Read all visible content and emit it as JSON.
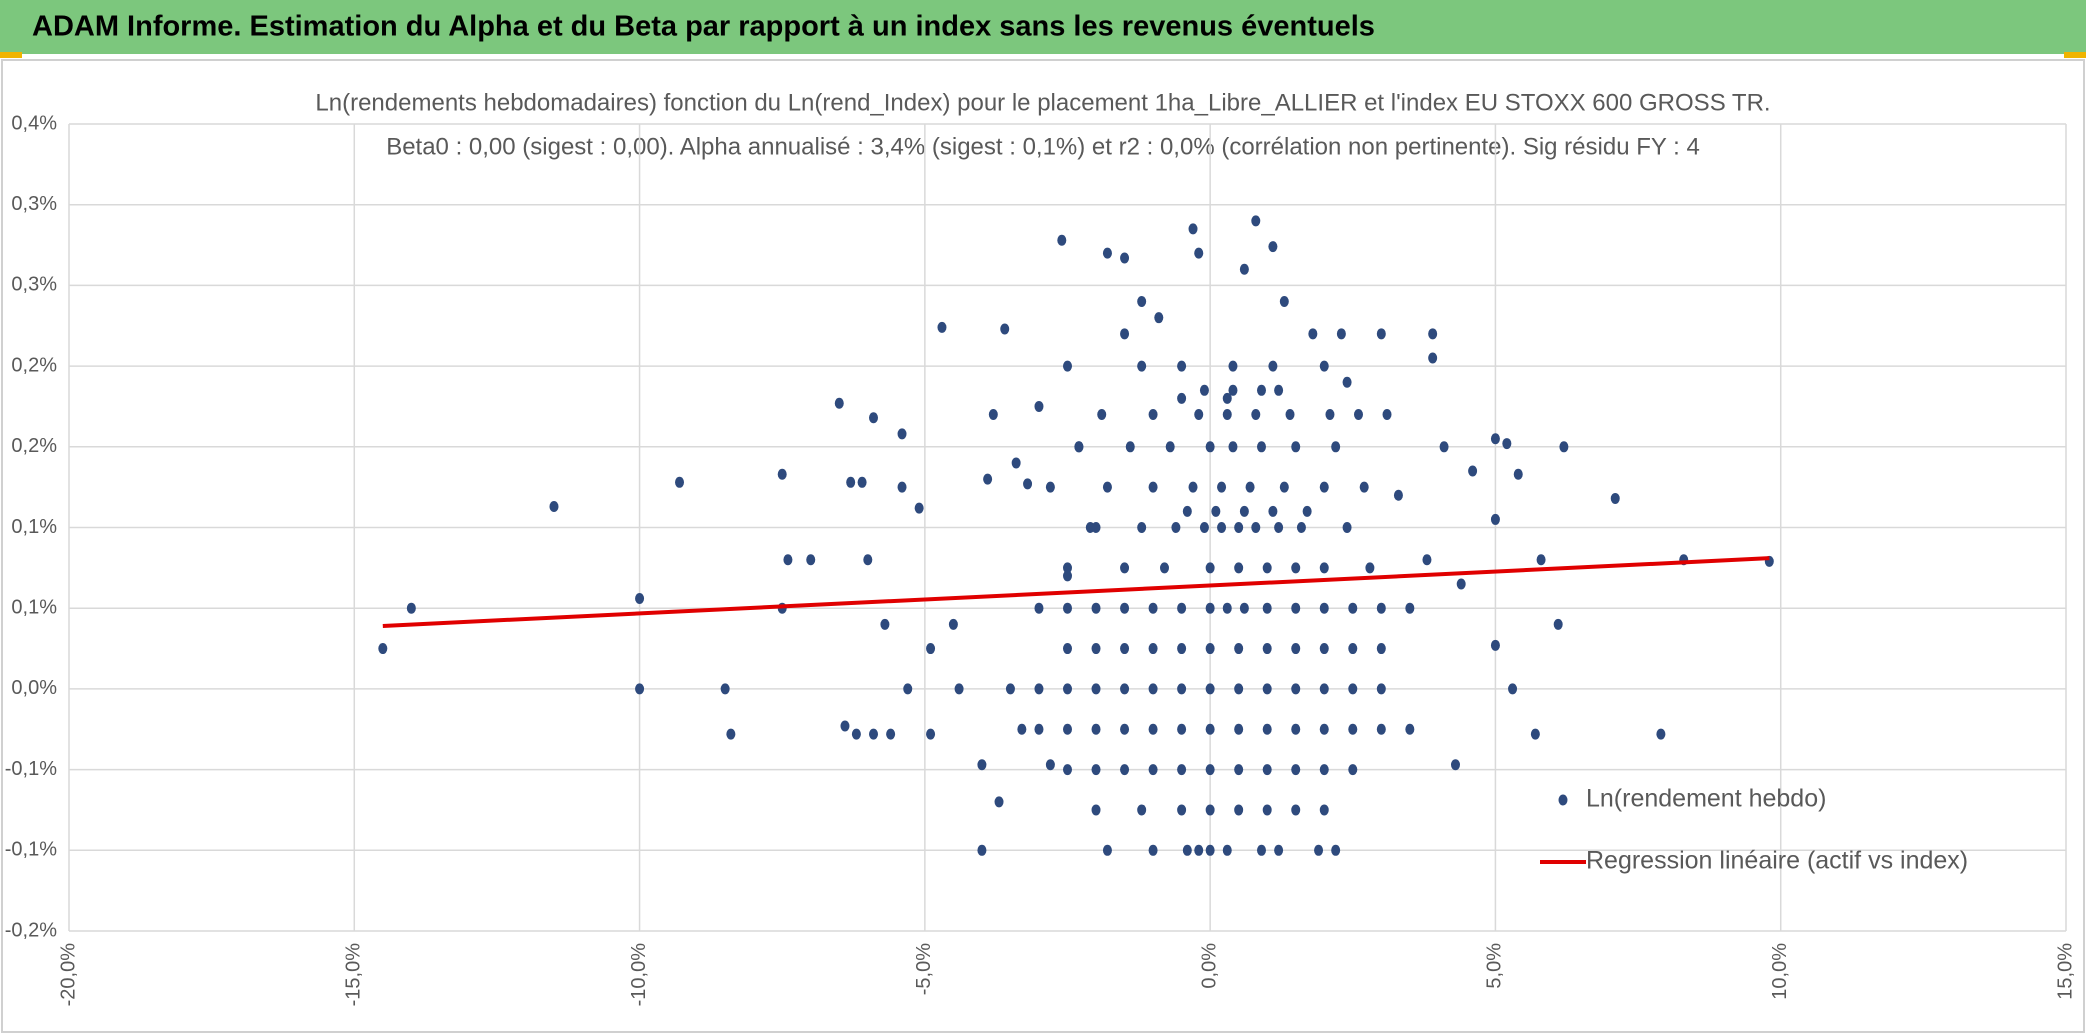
{
  "header": {
    "title": "ADAM Informe. Estimation du Alpha et du Beta par rapport à un index sans les revenus éventuels"
  },
  "chart_data": {
    "type": "scatter",
    "title": "Ln(rendements hebdomadaires) fonction du Ln(rend_Index) pour le placement 1ha_Libre_ALLIER et l'index EU STOXX 600 GROSS TR.",
    "subtitle": "Beta0 : 0,00 (sigest : 0,00). Alpha annualisé : 3,4% (sigest : 0,1%) et r2 : 0,0% (corrélation non pertinente). Sig résidu FY : 4",
    "xlim": [
      -20,
      15
    ],
    "xticks": [
      {
        "value": -20,
        "label": "-20,0%"
      },
      {
        "value": -15,
        "label": "-15,0%"
      },
      {
        "value": -10,
        "label": "-10,0%"
      },
      {
        "value": -5,
        "label": "-5,0%"
      },
      {
        "value": 0,
        "label": "0,0%"
      },
      {
        "value": 5,
        "label": "5,0%"
      },
      {
        "value": 10,
        "label": "10,0%"
      },
      {
        "value": 15,
        "label": "15,0%"
      }
    ],
    "ylim": [
      -0.15,
      0.35
    ],
    "yticks": [
      {
        "value": -0.15,
        "label": "-0,2%"
      },
      {
        "value": -0.1,
        "label": "-0,1%"
      },
      {
        "value": -0.05,
        "label": "-0,1%"
      },
      {
        "value": 0,
        "label": "0,0%"
      },
      {
        "value": 0.05,
        "label": "0,1%"
      },
      {
        "value": 0.1,
        "label": "0,1%"
      },
      {
        "value": 0.15,
        "label": "0,2%"
      },
      {
        "value": 0.2,
        "label": "0,2%"
      },
      {
        "value": 0.25,
        "label": "0,3%"
      },
      {
        "value": 0.3,
        "label": "0,3%"
      },
      {
        "value": 0.35,
        "label": "0,4%"
      }
    ],
    "grid": true,
    "legend": "right",
    "series": [
      {
        "name": "Ln(rendement hebdo)",
        "color": "#2e4a7d",
        "kind": "markers",
        "x": [
          -14.5,
          -14,
          -11.5,
          -10,
          -10,
          -9.3,
          -8.5,
          -8.4,
          -7.5,
          -7.4,
          -7.5,
          -7,
          -6.5,
          -6.4,
          -6.2,
          -6.3,
          -6.1,
          -6,
          -5.9,
          -5.9,
          -5.7,
          -5.6,
          -5.4,
          -5.4,
          -5.3,
          -5.1,
          -4.9,
          -4.7,
          -4.9,
          -4.5,
          -4.4,
          -4,
          -4,
          -3.9,
          -3.8,
          -3.7,
          -3.6,
          -3.4,
          -3.3,
          -3.2,
          -3,
          -2.8,
          -2.6,
          -2.5,
          -2.3,
          -2.1,
          -1.8,
          -1.5,
          -1.5,
          -1.2,
          -0.9,
          -0.5,
          -0.3,
          -0.2,
          0.3,
          0.6,
          0.8,
          1.1,
          1.3,
          1.8,
          2.3,
          2.4,
          3,
          3.1,
          3.3,
          3.9,
          3.9,
          3.8,
          4.1,
          4.3,
          4.4,
          4.6,
          5,
          5,
          5,
          5.2,
          5.3,
          5.4,
          5.7,
          5.8,
          6.1,
          6.2,
          7.1,
          7.9,
          8.3,
          9.8,
          -3.5,
          -3,
          -2.5,
          -2,
          -1.5,
          -1,
          -0.5,
          0,
          0.5,
          1,
          1.5,
          2,
          2.5,
          3,
          -3,
          -2.5,
          -2,
          -1.5,
          -1,
          -0.5,
          0,
          0.5,
          1,
          1.5,
          2,
          2.5,
          3,
          3.5,
          -2.5,
          -2,
          -1.5,
          -1,
          -0.5,
          0,
          0.5,
          1,
          1.5,
          2,
          2.5,
          3,
          -3,
          -2.5,
          -2,
          -1.5,
          -1,
          -0.5,
          0,
          0.3,
          0.6,
          1,
          1.5,
          2,
          2.5,
          3,
          3.5,
          -2.5,
          -2,
          -1.5,
          -1,
          -0.5,
          0,
          0.5,
          1,
          1.5,
          2,
          2.5,
          -2,
          -1.2,
          -0.5,
          0,
          0.5,
          1,
          1.5,
          2,
          -1.8,
          -1,
          -0.4,
          -0.2,
          0,
          0.3,
          0.9,
          1.2,
          1.9,
          2.2,
          -2.5,
          -1.5,
          -0.8,
          0,
          0.5,
          1,
          1.5,
          2,
          2.8,
          -2,
          -1.2,
          -0.6,
          -0.1,
          0.2,
          0.5,
          0.8,
          1.2,
          1.6,
          2.4,
          -0.4,
          0.1,
          0.6,
          1.1,
          1.7,
          -2.8,
          -1.8,
          -1,
          -0.3,
          0.2,
          0.7,
          1.3,
          2,
          2.7,
          -2.3,
          -1.4,
          -0.7,
          0,
          0.4,
          0.9,
          1.5,
          2.2,
          -1.9,
          -1,
          -0.2,
          0.3,
          0.8,
          1.4,
          2.1,
          2.6,
          -0.1,
          0.4,
          0.9,
          1.2,
          -2.5,
          -1.2,
          -0.5,
          0.4,
          1.1,
          2
        ],
        "values": [
          0.025,
          0.05,
          0.113,
          0.056,
          0,
          0.128,
          0,
          -0.028,
          0.133,
          0.08,
          0.05,
          0.08,
          0.177,
          -0.023,
          -0.028,
          0.128,
          0.128,
          0.08,
          -0.028,
          0.168,
          0.04,
          -0.028,
          0.158,
          0.125,
          0,
          0.112,
          0.025,
          0.224,
          -0.028,
          0.04,
          0,
          -0.047,
          -0.1,
          0.13,
          0.17,
          -0.07,
          0.223,
          0.14,
          -0.025,
          0.127,
          0.175,
          -0.047,
          0.278,
          0.07,
          0.15,
          0.1,
          0.27,
          0.267,
          0.22,
          0.24,
          0.23,
          0.18,
          0.285,
          0.27,
          0.18,
          0.26,
          0.29,
          0.274,
          0.24,
          0.22,
          0.22,
          0.19,
          0.22,
          0.17,
          0.12,
          0.22,
          0.205,
          0.08,
          0.15,
          -0.047,
          0.065,
          0.135,
          0.105,
          0.155,
          0.027,
          0.152,
          0,
          0.133,
          -0.028,
          0.08,
          0.04,
          0.15,
          0.118,
          -0.028,
          0.08,
          0.079,
          0,
          0,
          0,
          0,
          0,
          0,
          0,
          0,
          0,
          0,
          0,
          0,
          0,
          0,
          -0.025,
          -0.025,
          -0.025,
          -0.025,
          -0.025,
          -0.025,
          -0.025,
          -0.025,
          -0.025,
          -0.025,
          -0.025,
          -0.025,
          -0.025,
          -0.025,
          0.025,
          0.025,
          0.025,
          0.025,
          0.025,
          0.025,
          0.025,
          0.025,
          0.025,
          0.025,
          0.025,
          0.025,
          0.05,
          0.05,
          0.05,
          0.05,
          0.05,
          0.05,
          0.05,
          0.05,
          0.05,
          0.05,
          0.05,
          0.05,
          0.05,
          0.05,
          0.05,
          -0.05,
          -0.05,
          -0.05,
          -0.05,
          -0.05,
          -0.05,
          -0.05,
          -0.05,
          -0.05,
          -0.05,
          -0.05,
          -0.075,
          -0.075,
          -0.075,
          -0.075,
          -0.075,
          -0.075,
          -0.075,
          -0.075,
          -0.1,
          -0.1,
          -0.1,
          -0.1,
          -0.1,
          -0.1,
          -0.1,
          -0.1,
          -0.1,
          -0.1,
          0.075,
          0.075,
          0.075,
          0.075,
          0.075,
          0.075,
          0.075,
          0.075,
          0.075,
          0.1,
          0.1,
          0.1,
          0.1,
          0.1,
          0.1,
          0.1,
          0.1,
          0.1,
          0.1,
          0.11,
          0.11,
          0.11,
          0.11,
          0.11,
          0.125,
          0.125,
          0.125,
          0.125,
          0.125,
          0.125,
          0.125,
          0.125,
          0.125,
          0.15,
          0.15,
          0.15,
          0.15,
          0.15,
          0.15,
          0.15,
          0.15,
          0.17,
          0.17,
          0.17,
          0.17,
          0.17,
          0.17,
          0.17,
          0.17,
          0.185,
          0.185,
          0.185,
          0.185,
          0.2,
          0.2,
          0.2,
          0.2,
          0.2,
          0.2
        ]
      },
      {
        "name": "Regression linéaire (actif vs index)",
        "color": "#e00000",
        "kind": "line",
        "x": [
          -14.5,
          9.8
        ],
        "values": [
          0.039,
          0.081
        ]
      }
    ]
  }
}
